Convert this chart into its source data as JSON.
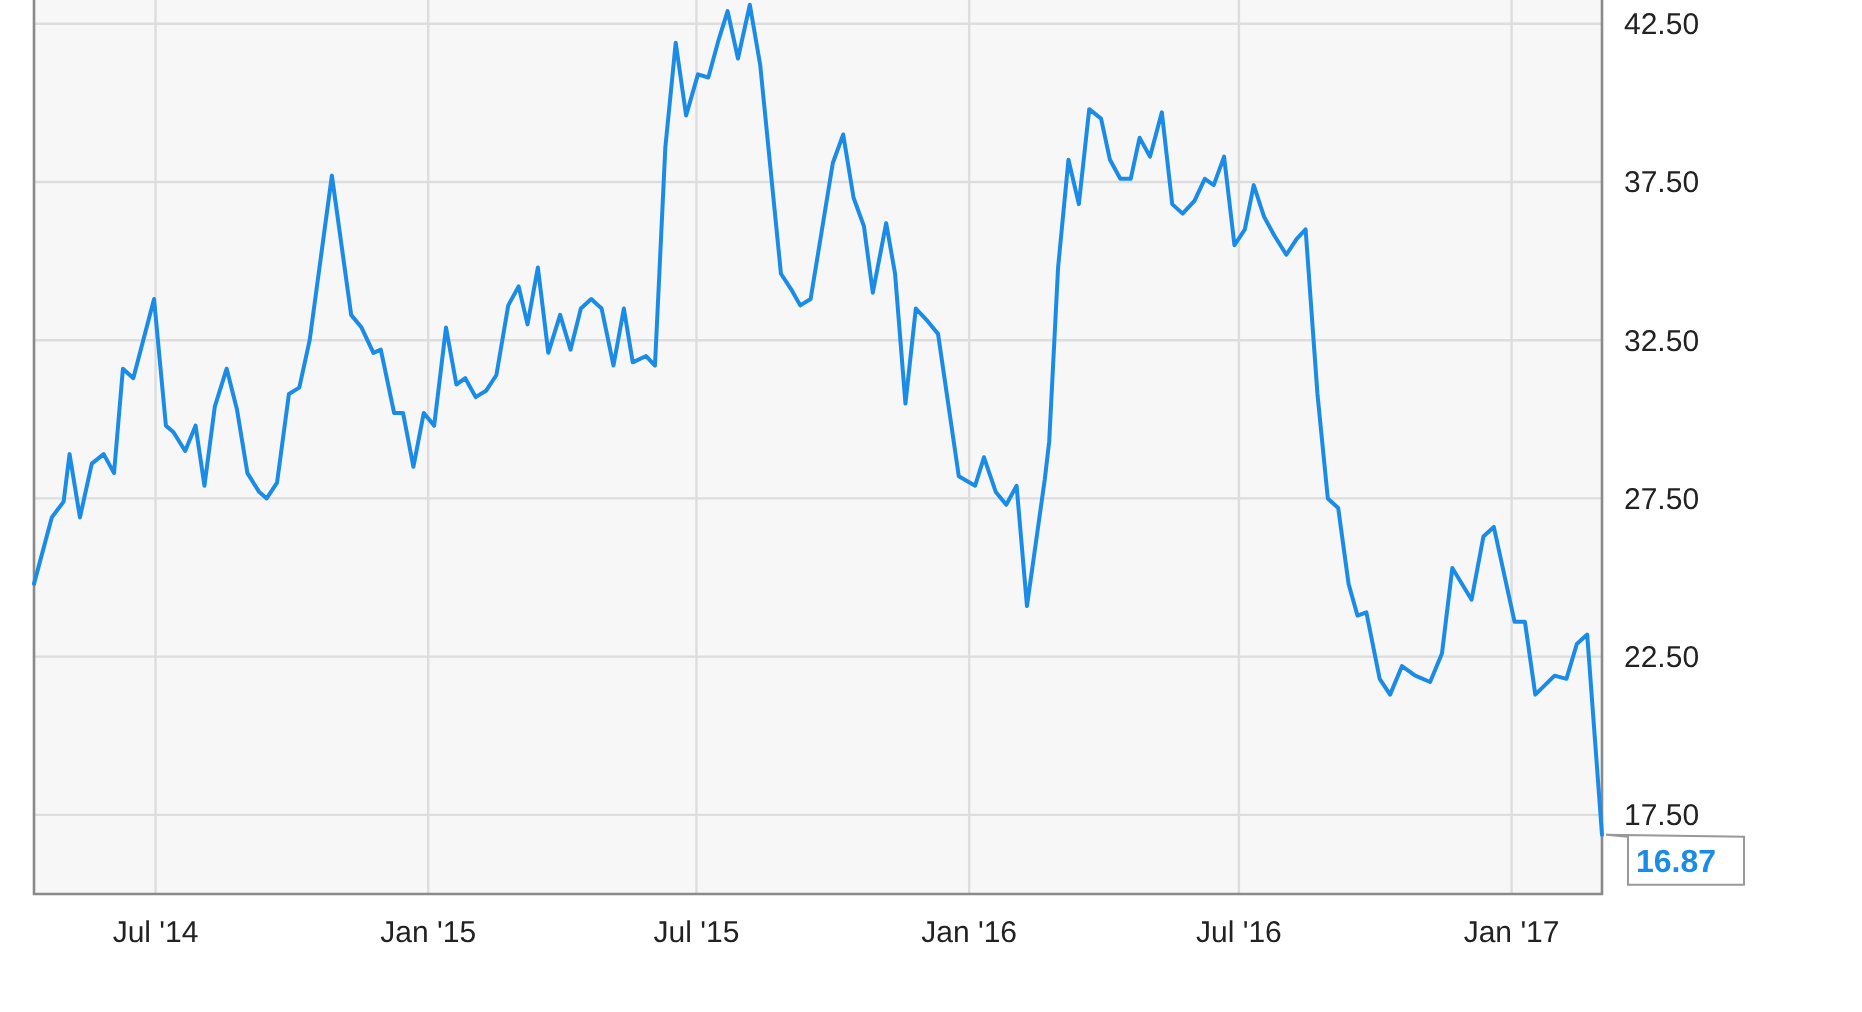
{
  "chart_data": {
    "type": "line",
    "xlim": [
      "2014-04-10",
      "2017-03-03"
    ],
    "ylim": [
      15,
      43.25
    ],
    "xticks": [
      {
        "value": "2014-07-01",
        "label": "Jul '14"
      },
      {
        "value": "2015-01-01",
        "label": "Jan '15"
      },
      {
        "value": "2015-07-01",
        "label": "Jul '15"
      },
      {
        "value": "2016-01-01",
        "label": "Jan '16"
      },
      {
        "value": "2016-07-01",
        "label": "Jul '16"
      },
      {
        "value": "2017-01-01",
        "label": "Jan '17"
      }
    ],
    "yticks": [
      {
        "value": 17.5,
        "label": "17.50"
      },
      {
        "value": 22.5,
        "label": "22.50"
      },
      {
        "value": 27.5,
        "label": "27.50"
      },
      {
        "value": 32.5,
        "label": "32.50"
      },
      {
        "value": 37.5,
        "label": "37.50"
      },
      {
        "value": 42.5,
        "label": "42.50"
      }
    ],
    "grid": true,
    "marker": "none",
    "line_style": "solid",
    "annotations": [
      {
        "text": "16.87",
        "x": "2017-03-03",
        "y": 16.87
      }
    ],
    "series": [
      {
        "color": "#1a8ce8",
        "x": [
          "2014-04-10",
          "2014-04-22",
          "2014-04-30",
          "2014-05-04",
          "2014-05-11",
          "2014-05-19",
          "2014-05-27",
          "2014-06-03",
          "2014-06-09",
          "2014-06-16",
          "2014-06-30",
          "2014-07-08",
          "2014-07-13",
          "2014-07-21",
          "2014-07-28",
          "2014-08-03",
          "2014-08-10",
          "2014-08-18",
          "2014-08-25",
          "2014-09-01",
          "2014-09-09",
          "2014-09-14",
          "2014-09-21",
          "2014-09-29",
          "2014-10-06",
          "2014-10-13",
          "2014-10-28",
          "2014-11-10",
          "2014-11-17",
          "2014-11-25",
          "2014-11-30",
          "2014-12-09",
          "2014-12-15",
          "2014-12-22",
          "2014-12-29",
          "2015-01-05",
          "2015-01-13",
          "2015-01-20",
          "2015-01-26",
          "2015-02-02",
          "2015-02-09",
          "2015-02-16",
          "2015-02-24",
          "2015-03-03",
          "2015-03-09",
          "2015-03-16",
          "2015-03-23",
          "2015-03-31",
          "2015-04-07",
          "2015-04-14",
          "2015-04-21",
          "2015-04-28",
          "2015-05-06",
          "2015-05-13",
          "2015-05-19",
          "2015-05-28",
          "2015-06-03",
          "2015-06-10",
          "2015-06-17",
          "2015-06-24",
          "2015-07-02",
          "2015-07-09",
          "2015-07-16",
          "2015-07-22",
          "2015-07-29",
          "2015-08-06",
          "2015-08-13",
          "2015-08-27",
          "2015-09-03",
          "2015-09-09",
          "2015-09-16",
          "2015-09-23",
          "2015-10-01",
          "2015-10-08",
          "2015-10-15",
          "2015-10-22",
          "2015-10-28",
          "2015-11-06",
          "2015-11-12",
          "2015-11-19",
          "2015-11-26",
          "2015-12-04",
          "2015-12-11",
          "2015-12-25",
          "2016-01-05",
          "2016-01-11",
          "2016-01-19",
          "2016-01-26",
          "2016-02-02",
          "2016-02-09",
          "2016-02-21",
          "2016-02-24",
          "2016-03-01",
          "2016-03-08",
          "2016-03-15",
          "2016-03-22",
          "2016-03-30",
          "2016-04-05",
          "2016-04-12",
          "2016-04-19",
          "2016-04-25",
          "2016-05-02",
          "2016-05-10",
          "2016-05-17",
          "2016-05-24",
          "2016-06-01",
          "2016-06-08",
          "2016-06-14",
          "2016-06-21",
          "2016-06-28",
          "2016-07-05",
          "2016-07-11",
          "2016-07-18",
          "2016-07-25",
          "2016-08-02",
          "2016-08-09",
          "2016-08-15",
          "2016-08-23",
          "2016-08-30",
          "2016-09-06",
          "2016-09-13",
          "2016-09-19",
          "2016-09-25",
          "2016-10-04",
          "2016-10-11",
          "2016-10-19",
          "2016-10-28",
          "2016-11-07",
          "2016-11-15",
          "2016-11-22",
          "2016-12-05",
          "2016-12-13",
          "2016-12-20",
          "2017-01-03",
          "2017-01-10",
          "2017-01-17",
          "2017-01-30",
          "2017-02-07",
          "2017-02-14",
          "2017-02-21",
          "2017-03-03"
        ],
        "values": [
          24.8,
          26.9,
          27.4,
          28.9,
          26.9,
          28.6,
          28.9,
          28.3,
          31.6,
          31.3,
          33.8,
          29.8,
          29.6,
          29.0,
          29.8,
          27.9,
          30.4,
          31.6,
          30.3,
          28.3,
          27.7,
          27.5,
          28.0,
          30.8,
          31.0,
          32.5,
          37.7,
          33.3,
          32.9,
          32.1,
          32.2,
          30.2,
          30.2,
          28.5,
          30.2,
          29.8,
          32.9,
          31.1,
          31.3,
          30.7,
          30.9,
          31.4,
          33.6,
          34.2,
          33.0,
          34.8,
          32.1,
          33.3,
          32.2,
          33.5,
          33.8,
          33.5,
          31.7,
          33.5,
          31.8,
          32.0,
          31.7,
          38.6,
          41.9,
          39.6,
          40.9,
          40.8,
          42.0,
          42.9,
          41.4,
          43.1,
          41.2,
          34.6,
          34.1,
          33.6,
          33.8,
          35.8,
          38.1,
          39.0,
          37.0,
          36.1,
          34.0,
          36.2,
          34.6,
          30.5,
          33.5,
          33.1,
          32.7,
          28.2,
          27.9,
          28.8,
          27.7,
          27.3,
          27.9,
          24.1,
          28.1,
          29.3,
          34.8,
          38.2,
          36.8,
          39.8,
          39.5,
          38.2,
          37.6,
          37.6,
          38.9,
          38.3,
          39.7,
          36.8,
          36.5,
          36.9,
          37.6,
          37.4,
          38.3,
          35.5,
          36.0,
          37.4,
          36.4,
          35.8,
          35.2,
          35.7,
          36.0,
          30.8,
          27.5,
          27.2,
          24.8,
          23.8,
          23.9,
          21.8,
          21.3,
          22.2,
          21.9,
          21.7,
          22.6,
          25.3,
          24.3,
          26.3,
          26.6,
          23.6,
          23.6,
          21.3,
          21.9,
          21.8,
          22.9,
          23.2,
          16.87
        ]
      }
    ]
  }
}
